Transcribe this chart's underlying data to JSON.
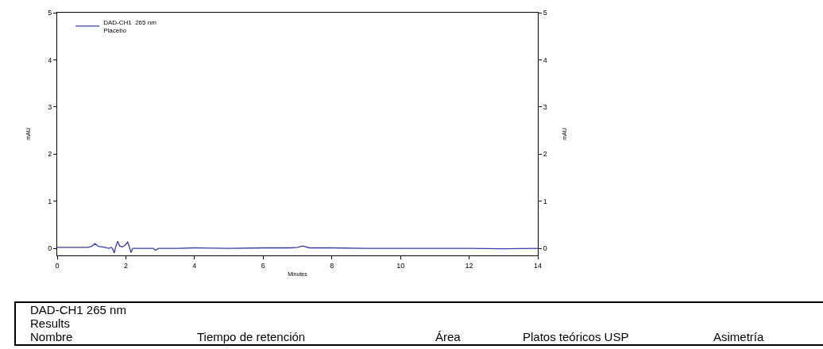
{
  "chart_data": {
    "type": "line",
    "xlabel": "Minutes",
    "ylabel": "mAU",
    "y2label": "mAU",
    "series": [
      {
        "name": "DAD-CH1  265 nm\nPlacebo",
        "color": "#3a3aa8",
        "x": [
          0,
          0.5,
          0.9,
          1.0,
          1.1,
          1.2,
          1.4,
          1.5,
          1.58,
          1.62,
          1.66,
          1.7,
          1.76,
          1.82,
          1.9,
          1.97,
          2.05,
          2.1,
          2.15,
          2.2,
          2.4,
          2.8,
          2.86,
          2.95,
          3.5,
          4.0,
          5.0,
          6.0,
          6.8,
          7.0,
          7.15,
          7.35,
          8.0,
          9.0,
          10.0,
          11.0,
          12.0,
          13.0,
          14.0
        ],
        "values": [
          0.02,
          0.02,
          0.02,
          0.04,
          0.1,
          0.04,
          0.02,
          0.0,
          0.02,
          -0.02,
          -0.1,
          0.02,
          0.15,
          0.05,
          0.03,
          0.06,
          0.13,
          0.04,
          -0.09,
          0.0,
          0.0,
          0.0,
          -0.04,
          0.0,
          0.0,
          0.01,
          0.0,
          0.01,
          0.01,
          0.02,
          0.05,
          0.01,
          0.01,
          0.0,
          0.0,
          0.0,
          0.0,
          -0.01,
          0.0
        ]
      }
    ],
    "xlim": [
      0,
      14
    ],
    "xticks": [
      0,
      2,
      4,
      6,
      8,
      10,
      12,
      14
    ],
    "ylim": [
      -0.15,
      5
    ],
    "yticks": [
      0,
      1,
      2,
      3,
      4,
      5
    ],
    "y2lim": [
      -0.15,
      5
    ],
    "y2ticks": [
      0,
      1,
      2,
      3,
      4,
      5
    ],
    "legend": "top left",
    "grid": false,
    "marker": "none",
    "line_style": "solid",
    "annotations": [
      "DAD-CH1  265 nm",
      "Results",
      "Nombre",
      "Tiempo de retención",
      "Área",
      "Platos teóricos USP",
      "Asimetría"
    ]
  }
}
